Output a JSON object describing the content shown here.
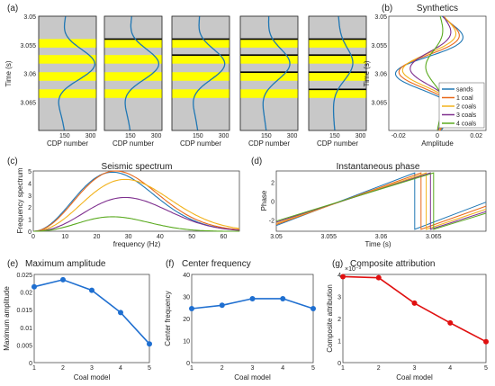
{
  "colors": {
    "blue": "#1f77b4",
    "orange": "#e8681a",
    "yellow": "#f2b21b",
    "purple": "#7e2f8e",
    "green": "#5aaa1f",
    "red": "#e01010",
    "coalband": "#ffff00",
    "panelbg": "#c8c8c8"
  },
  "chart_data": [
    {
      "id": "a",
      "panel_label": "(a)",
      "type": "line",
      "ylabel": "Time (s)",
      "xlabel": "CDP number",
      "ylim": [
        3.05,
        3.07
      ],
      "y_ticks": [
        "3.05",
        "3.055",
        "3.06",
        "3.065"
      ],
      "x_ticks": [
        "150",
        "300"
      ],
      "y_tick_values": [
        3.05,
        3.055,
        3.06,
        3.065
      ],
      "subpanels": [
        {
          "bands": [
            [
              3.054,
              3.0555
            ],
            [
              3.0568,
              3.0583
            ],
            [
              3.0598,
              3.0613
            ],
            [
              3.0628,
              3.0643
            ]
          ],
          "black_lines": []
        },
        {
          "bands": [
            [
              3.054,
              3.0555
            ],
            [
              3.0568,
              3.0583
            ],
            [
              3.0598,
              3.0613
            ],
            [
              3.0628,
              3.0643
            ]
          ],
          "black_lines": [
            3.054
          ]
        },
        {
          "bands": [
            [
              3.054,
              3.0555
            ],
            [
              3.0568,
              3.0583
            ],
            [
              3.0598,
              3.0613
            ],
            [
              3.0628,
              3.0643
            ]
          ],
          "black_lines": [
            3.054,
            3.0568
          ]
        },
        {
          "bands": [
            [
              3.054,
              3.0555
            ],
            [
              3.0568,
              3.0583
            ],
            [
              3.0598,
              3.0613
            ],
            [
              3.0628,
              3.0643
            ]
          ],
          "black_lines": [
            3.054,
            3.0568,
            3.0598
          ]
        },
        {
          "bands": [
            [
              3.054,
              3.0555
            ],
            [
              3.0568,
              3.0583
            ],
            [
              3.0598,
              3.0613
            ],
            [
              3.0628,
              3.0643
            ]
          ],
          "black_lines": [
            3.054,
            3.0568,
            3.0598,
            3.0628
          ]
        }
      ]
    },
    {
      "id": "b",
      "panel_label": "(b)",
      "type": "line",
      "title": "Synthetics",
      "xlabel": "Amplitude",
      "ylabel": "Time (s)",
      "xlim": [
        -0.025,
        0.025
      ],
      "ylim": [
        3.05,
        3.07
      ],
      "x_ticks": [
        "-0.02",
        "0",
        "0.02"
      ],
      "x_tick_values": [
        -0.02,
        0,
        0.02
      ],
      "y_ticks": [
        "3.05",
        "3.055",
        "3.06",
        "3.065"
      ],
      "y_tick_values": [
        3.05,
        3.055,
        3.06,
        3.065
      ],
      "legend": [
        "sands",
        "1 coal",
        "2 coals",
        "3 coals",
        "4 coals"
      ],
      "series_amp": [
        0.022,
        0.02,
        0.018,
        0.014,
        0.006
      ]
    },
    {
      "id": "c",
      "panel_label": "(c)",
      "type": "line",
      "title": "Seismic spectrum",
      "xlabel": "frequency (Hz)",
      "ylabel": "Frequency spectrum",
      "xlim": [
        0,
        65
      ],
      "ylim": [
        0,
        5
      ],
      "x_ticks": [
        "0",
        "10",
        "20",
        "30",
        "40",
        "50",
        "60"
      ],
      "x_tick_values": [
        0,
        10,
        20,
        30,
        40,
        50,
        60
      ],
      "y_ticks": [
        "0",
        "1",
        "2",
        "3",
        "4",
        "5"
      ],
      "y_tick_values": [
        0,
        1,
        2,
        3,
        4,
        5
      ],
      "series_peak": [
        4.9,
        5.0,
        4.3,
        2.8,
        1.2
      ],
      "series_peak_freq": [
        25,
        26,
        29,
        29,
        25
      ]
    },
    {
      "id": "d",
      "panel_label": "(d)",
      "type": "line",
      "title": "Instantaneous phase",
      "xlabel": "Time (s)",
      "ylabel": "Phase",
      "xlim": [
        3.05,
        3.07
      ],
      "ylim": [
        -3.2,
        3.2
      ],
      "x_ticks": [
        "3.05",
        "3.055",
        "3.06",
        "3.065"
      ],
      "x_tick_values": [
        3.05,
        3.055,
        3.06,
        3.065
      ],
      "y_ticks": [
        "-2",
        "0",
        "2"
      ],
      "y_tick_values": [
        -2,
        0,
        2
      ],
      "series_jump": [
        3.0632,
        3.0638,
        3.0643,
        3.0647,
        3.065
      ]
    },
    {
      "id": "e",
      "panel_label": "(e)",
      "type": "line",
      "title": "Maximum amplitude",
      "xlabel": "Coal model",
      "ylabel": "Maximum amplitude",
      "x": [
        1,
        2,
        3,
        4,
        5
      ],
      "values": [
        0.0215,
        0.0235,
        0.0205,
        0.0142,
        0.0053
      ],
      "xlim": [
        1,
        5
      ],
      "ylim": [
        0,
        0.025
      ],
      "x_ticks": [
        "1",
        "2",
        "3",
        "4",
        "5"
      ],
      "y_ticks": [
        "0",
        "0.005",
        "0.01",
        "0.015",
        "0.02",
        "0.025"
      ],
      "y_tick_values": [
        0,
        0.005,
        0.01,
        0.015,
        0.02,
        0.025
      ]
    },
    {
      "id": "f",
      "panel_label": "(f)",
      "type": "line",
      "title": "Center frequency",
      "xlabel": "Coal model",
      "ylabel": "Center frequency",
      "x": [
        1,
        2,
        3,
        4,
        5
      ],
      "values": [
        24.5,
        26,
        29,
        29,
        24.5
      ],
      "xlim": [
        1,
        5
      ],
      "ylim": [
        0,
        40
      ],
      "x_ticks": [
        "1",
        "2",
        "3",
        "4",
        "5"
      ],
      "y_ticks": [
        "0",
        "10",
        "20",
        "30",
        "40"
      ],
      "y_tick_values": [
        0,
        10,
        20,
        30,
        40
      ]
    },
    {
      "id": "g",
      "panel_label": "(g)",
      "type": "line",
      "title": "Composite attribution",
      "exponent_label": "×10⁻³",
      "xlabel": "Coal model",
      "ylabel": "Composite attribution",
      "x": [
        1,
        2,
        3,
        4,
        5
      ],
      "values": [
        3.9,
        3.85,
        2.7,
        1.8,
        0.95
      ],
      "xlim": [
        1,
        5
      ],
      "ylim": [
        0,
        4
      ],
      "x_ticks": [
        "1",
        "2",
        "3",
        "4",
        "5"
      ],
      "y_ticks": [
        "0",
        "1",
        "2",
        "3",
        "4"
      ],
      "y_tick_values": [
        0,
        1,
        2,
        3,
        4
      ]
    }
  ]
}
